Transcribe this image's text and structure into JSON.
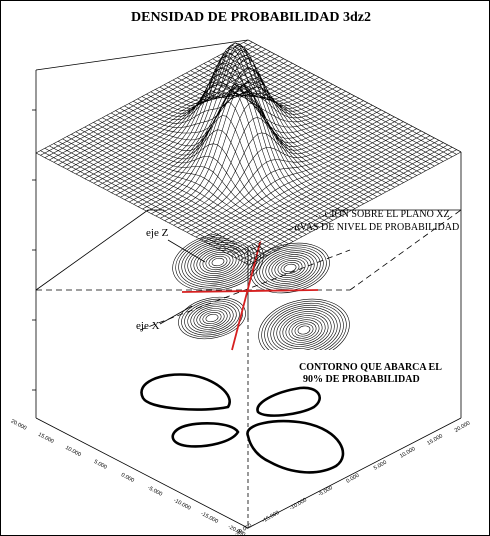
{
  "title": "DENSIDAD DE PROBABILIDAD 3dz2",
  "labels": {
    "axis_z": "eje Z",
    "axis_x": "eje X",
    "projection_line1": "PROYECCIÓN SOBRE EL PLANO XZ",
    "projection_line2": "CURVAS DE NIVEL DE PROBABILIDAD",
    "contour_line1": "CONTORNO QUE ABARCA EL",
    "contour_line2": "90% DE PROBABILIDAD"
  },
  "ticks_left": [
    "20.000",
    "15.000",
    "10.000",
    "5.000",
    "0.000",
    "-5.000",
    "-10.000",
    "-15.000",
    "-20.000"
  ],
  "ticks_right": [
    "-20.000",
    "-15.000",
    "-10.000",
    "-5.000",
    "0.000",
    "5.000",
    "10.000",
    "15.000",
    "20.000"
  ],
  "colors": {
    "lines": "#000000",
    "axis_lines": "#d62020",
    "background": "#ffffff"
  }
}
